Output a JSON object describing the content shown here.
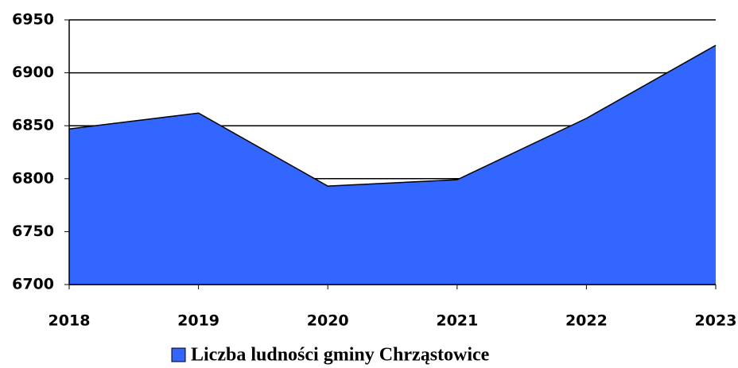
{
  "chart_data": {
    "type": "area",
    "categories": [
      "2018",
      "2019",
      "2020",
      "2021",
      "2022",
      "2023"
    ],
    "series": [
      {
        "name": "Liczba ludności gminy Chrząstowice",
        "color": "#3366ff",
        "values": [
          6847,
          6862,
          6793,
          6799,
          6857,
          6926
        ]
      }
    ],
    "ylim": [
      6700,
      6950
    ],
    "yticks": [
      6700,
      6750,
      6800,
      6850,
      6900,
      6950
    ],
    "grid": true,
    "legend": "bottom"
  }
}
